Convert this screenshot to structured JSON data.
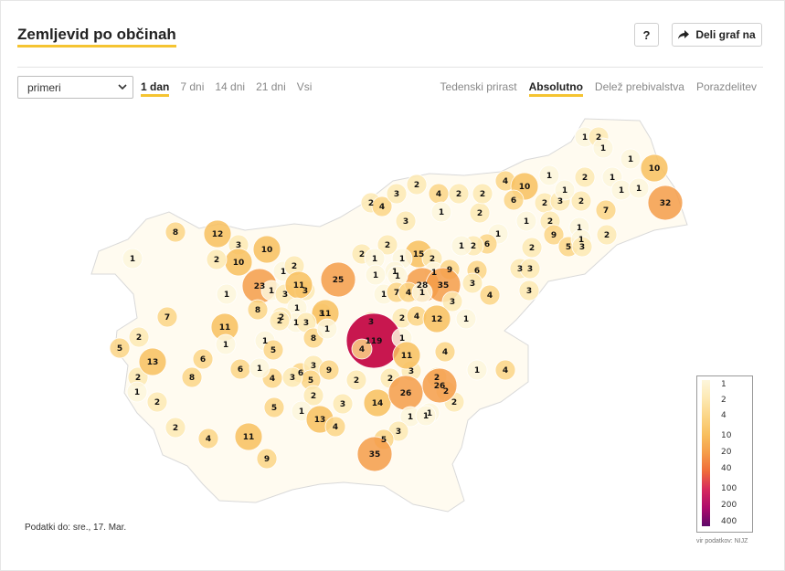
{
  "header": {
    "title": "Zemljevid po občinah",
    "help_label": "?",
    "share_label": "Deli graf na"
  },
  "controls": {
    "metric_select": "primeri",
    "periods": [
      "1 dan",
      "7 dni",
      "14 dni",
      "21 dni",
      "Vsi"
    ],
    "active_period": "1 dan",
    "modes": [
      "Tedenski prirast",
      "Absolutno",
      "Delež prebivalstva",
      "Porazdelitev"
    ],
    "active_mode": "Absolutno"
  },
  "map": {
    "region": "Slovenia municipalities",
    "labels": [
      "1",
      "2",
      "1",
      "1",
      "10",
      "1",
      "2",
      "1",
      "4",
      "10",
      "32",
      "6",
      "2",
      "3",
      "2",
      "1",
      "1",
      "1",
      "7",
      "2",
      "2",
      "4",
      "3",
      "2",
      "4",
      "2",
      "1",
      "2",
      "3",
      "2",
      "1",
      "1",
      "9",
      "5",
      "1",
      "3",
      "2",
      "8",
      "12",
      "1",
      "3",
      "10",
      "6",
      "2",
      "1",
      "10",
      "2",
      "1",
      "15",
      "2",
      "2",
      "1",
      "1",
      "1",
      "3",
      "3",
      "2",
      "2",
      "1",
      "23",
      "25",
      "1",
      "9",
      "2",
      "3",
      "28",
      "35",
      "1",
      "1",
      "1",
      "1",
      "1",
      "3",
      "6",
      "4",
      "3",
      "11",
      "3",
      "3",
      "7",
      "4",
      "1",
      "7",
      "1",
      "3",
      "3",
      "2",
      "4",
      "12",
      "1",
      "8",
      "11",
      "1",
      "3",
      "2",
      "11",
      "119",
      "8",
      "2",
      "1",
      "4",
      "1",
      "1",
      "5",
      "2",
      "1",
      "2",
      "13",
      "5",
      "4",
      "6",
      "8",
      "6",
      "1",
      "6",
      "3",
      "9",
      "2",
      "2",
      "3",
      "4",
      "11",
      "1",
      "4",
      "5",
      "3",
      "1",
      "2",
      "5",
      "2",
      "3",
      "1",
      "14",
      "26",
      "2",
      "2",
      "2",
      "1",
      "1",
      "26",
      "3",
      "1",
      "2",
      "13",
      "4",
      "5",
      "4",
      "11",
      "35",
      "9"
    ]
  },
  "legend": {
    "ticks": [
      "1",
      "2",
      "4",
      "10",
      "20",
      "40",
      "100",
      "200",
      "400"
    ],
    "colors": [
      "#fdf6dc",
      "#fde9b3",
      "#fbd586",
      "#f8bf5e",
      "#f59c49",
      "#ef6b3a",
      "#d6295e",
      "#ad0b6b",
      "#5e0a6a"
    ]
  },
  "footer": {
    "data_date": "Podatki do: sre., 17. Mar.",
    "source": "vir podatkov: NIJZ"
  },
  "colors": {
    "accent": "#f5c431",
    "peak": "#c8174f"
  }
}
